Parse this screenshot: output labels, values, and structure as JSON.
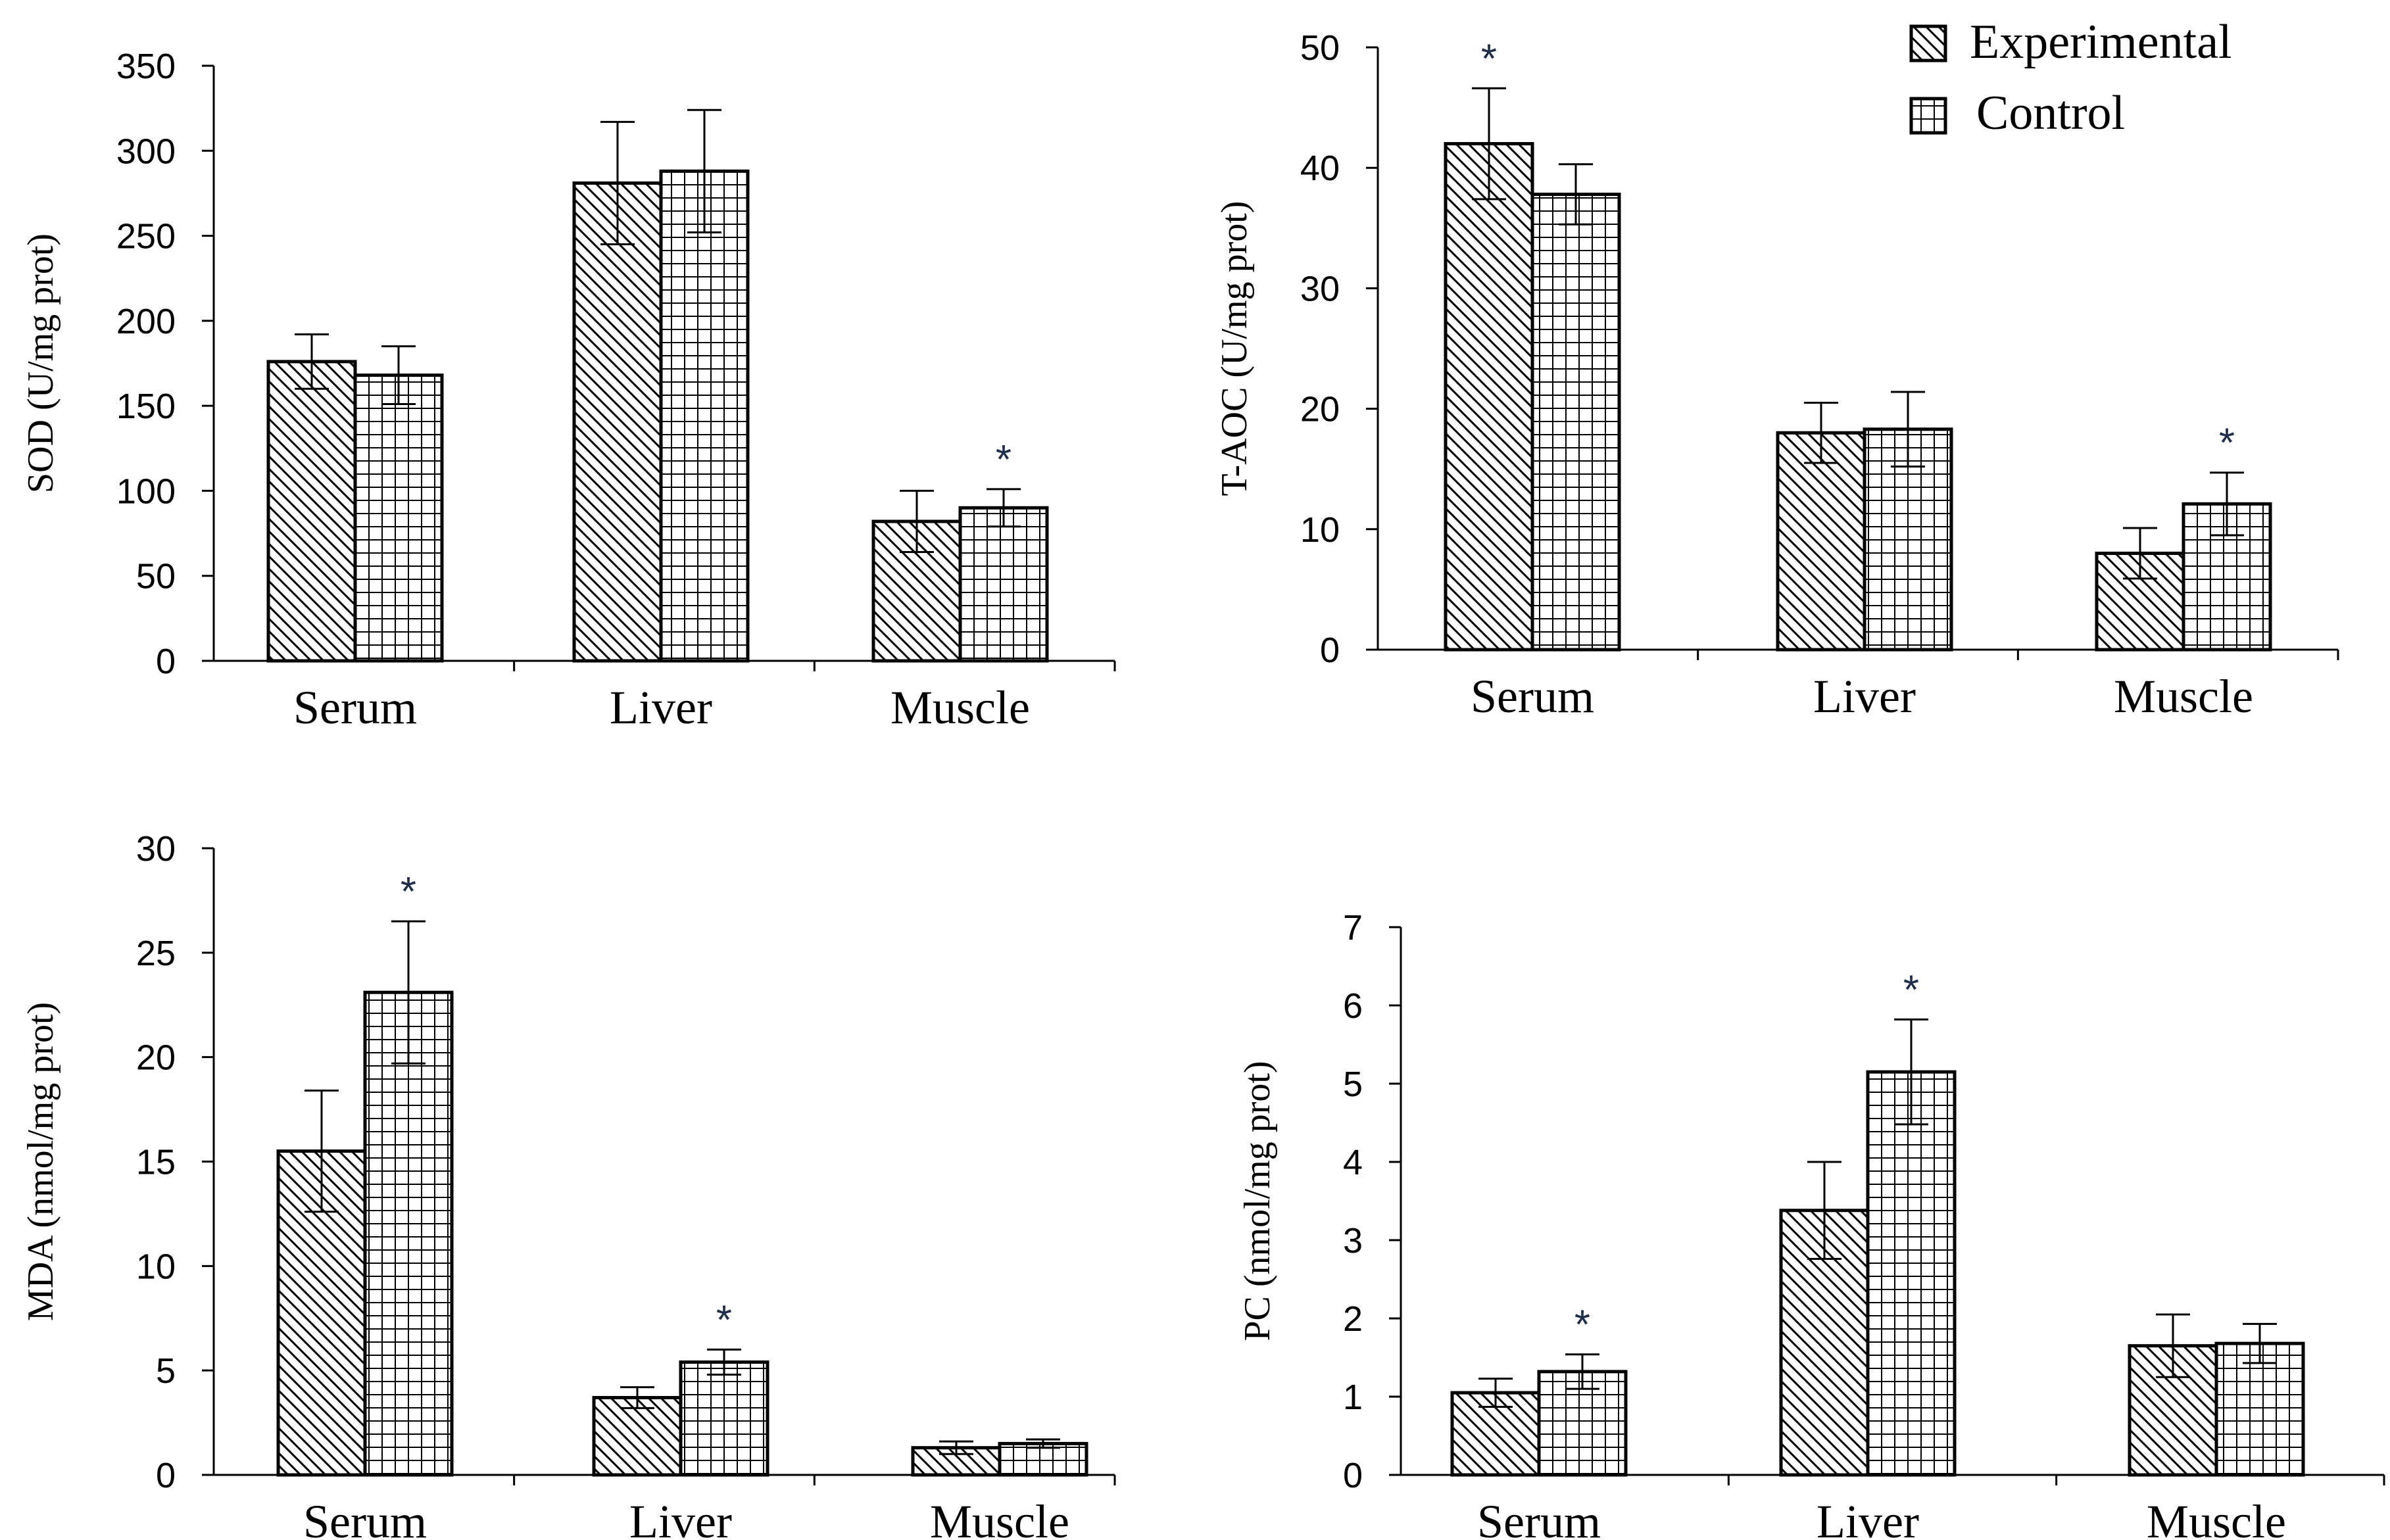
{
  "legend": {
    "experimental_label": "Experimental",
    "control_label": "Control"
  },
  "colors": {
    "ink": "#000000",
    "star": "#1f2f4a"
  },
  "chart_data": [
    {
      "type": "bar",
      "ylabel": "SOD (U/mg prot)",
      "ylim": [
        0,
        350
      ],
      "yticks": [
        0,
        50,
        100,
        150,
        200,
        250,
        300,
        350
      ],
      "categories": [
        "Serum",
        "Liver",
        "Muscle"
      ],
      "series": [
        {
          "name": "Experimental",
          "values": [
            176,
            281,
            82
          ],
          "errors": [
            16,
            36,
            18
          ]
        },
        {
          "name": "Control",
          "values": [
            168,
            288,
            90
          ],
          "errors": [
            17,
            36,
            11
          ]
        }
      ],
      "significance": [
        {
          "category": "Muscle",
          "series": "Control",
          "label": "*"
        }
      ]
    },
    {
      "type": "bar",
      "ylabel": "T-AOC (U/mg prot)",
      "ylim": [
        0,
        50
      ],
      "yticks": [
        0,
        10,
        20,
        30,
        40,
        50
      ],
      "categories": [
        "Serum",
        "Liver",
        "Muscle"
      ],
      "series": [
        {
          "name": "Experimental",
          "values": [
            42,
            18,
            8
          ],
          "errors": [
            4.6,
            2.5,
            2.1
          ]
        },
        {
          "name": "Control",
          "values": [
            37.8,
            18.3,
            12.1
          ],
          "errors": [
            2.5,
            3.1,
            2.6
          ]
        }
      ],
      "significance": [
        {
          "category": "Serum",
          "series": "Experimental",
          "label": "*"
        },
        {
          "category": "Muscle",
          "series": "Control",
          "label": "*"
        }
      ]
    },
    {
      "type": "bar",
      "ylabel": "MDA (nmol/mg prot)",
      "ylim": [
        0,
        30
      ],
      "yticks": [
        0,
        5,
        10,
        15,
        20,
        25,
        30
      ],
      "categories": [
        "Serum",
        "Liver",
        "Muscle"
      ],
      "series": [
        {
          "name": "Experimental",
          "values": [
            15.5,
            3.7,
            1.3
          ],
          "errors": [
            2.9,
            0.5,
            0.3
          ]
        },
        {
          "name": "Control",
          "values": [
            23.1,
            5.4,
            1.5
          ],
          "errors": [
            3.4,
            0.6,
            0.2
          ]
        }
      ],
      "significance": [
        {
          "category": "Serum",
          "series": "Control",
          "label": "*"
        },
        {
          "category": "Liver",
          "series": "Control",
          "label": "*"
        }
      ]
    },
    {
      "type": "bar",
      "ylabel": "PC (nmol/mg prot)",
      "ylim": [
        0,
        7
      ],
      "yticks": [
        0,
        1,
        2,
        3,
        4,
        5,
        6,
        7
      ],
      "categories": [
        "Serum",
        "Liver",
        "Muscle"
      ],
      "series": [
        {
          "name": "Experimental",
          "values": [
            1.05,
            3.38,
            1.65
          ],
          "errors": [
            0.18,
            0.62,
            0.4
          ]
        },
        {
          "name": "Control",
          "values": [
            1.32,
            5.15,
            1.68
          ],
          "errors": [
            0.22,
            0.67,
            0.25
          ]
        }
      ],
      "significance": [
        {
          "category": "Serum",
          "series": "Control",
          "label": "*"
        },
        {
          "category": "Liver",
          "series": "Control",
          "label": "*"
        }
      ]
    }
  ]
}
